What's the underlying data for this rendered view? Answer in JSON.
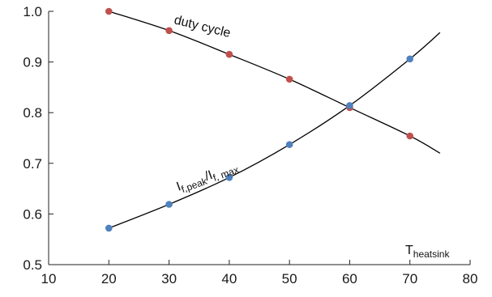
{
  "chart_data": {
    "type": "line",
    "title": "",
    "xlabel": {
      "main": "T",
      "sub": "heatsink"
    },
    "ylabel": "",
    "xlim": [
      10,
      80
    ],
    "ylim": [
      0.5,
      1.0
    ],
    "x_ticks": [
      10,
      20,
      30,
      40,
      50,
      60,
      70,
      80
    ],
    "x_tick_labels": [
      "10",
      "20",
      "30",
      "40",
      "50",
      "60",
      "70",
      "80"
    ],
    "y_ticks": [
      0.5,
      0.6,
      0.7,
      0.8,
      0.9,
      1.0
    ],
    "y_tick_labels": [
      "0.5",
      "0.6",
      "0.7",
      "0.8",
      "0.9",
      "1.0"
    ],
    "grid": false,
    "legend": "none",
    "series": [
      {
        "label_text": "duty cycle",
        "marker_color": "#c0504d",
        "line_color": "#000000",
        "x": [
          20,
          30,
          40,
          50,
          60,
          70
        ],
        "y": [
          1.0,
          0.962,
          0.915,
          0.866,
          0.81,
          0.754
        ],
        "curve_x": [
          20,
          30,
          40,
          50,
          60,
          70,
          75
        ],
        "curve_y": [
          1.0,
          0.962,
          0.915,
          0.866,
          0.81,
          0.754,
          0.72
        ]
      },
      {
        "label_parts": [
          {
            "text": "I",
            "sub": false
          },
          {
            "text": "f,peak",
            "sub": true
          },
          {
            "text": "/I",
            "sub": false
          },
          {
            "text": "f, max",
            "sub": true
          }
        ],
        "marker_color": "#4f81bd",
        "line_color": "#000000",
        "x": [
          20,
          30,
          40,
          50,
          60,
          70
        ],
        "y": [
          0.572,
          0.619,
          0.672,
          0.737,
          0.814,
          0.906
        ],
        "curve_x": [
          20,
          30,
          40,
          50,
          60,
          70,
          75
        ],
        "curve_y": [
          0.572,
          0.619,
          0.672,
          0.737,
          0.814,
          0.906,
          0.958
        ]
      }
    ]
  }
}
